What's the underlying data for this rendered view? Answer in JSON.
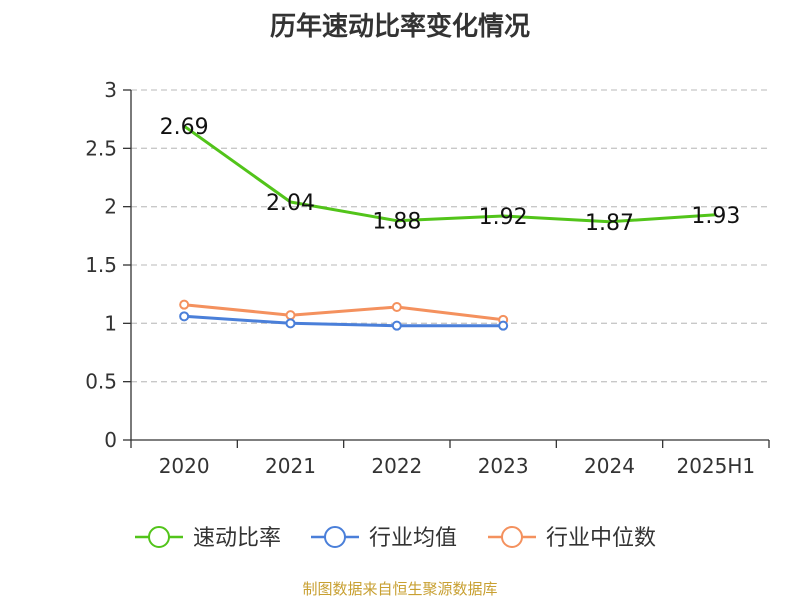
{
  "chart_data": {
    "type": "line",
    "title": "历年速动比率变化情况",
    "categories": [
      "2020",
      "2021",
      "2022",
      "2023",
      "2024",
      "2025H1"
    ],
    "ylim": [
      0,
      3
    ],
    "yticks": [
      "0",
      "0.5",
      "1",
      "1.5",
      "2",
      "2.5",
      "3"
    ],
    "grid": true,
    "legend_position": "bottom",
    "series": [
      {
        "name": "速动比率",
        "color": "#52c41a",
        "values": [
          2.69,
          2.04,
          1.88,
          1.92,
          1.87,
          1.93
        ],
        "labels": [
          "2.69",
          "2.04",
          "1.88",
          "1.92",
          "1.87",
          "1.93"
        ],
        "markers": false
      },
      {
        "name": "行业均值",
        "color": "#4a7fd9",
        "values": [
          1.06,
          1.0,
          0.98,
          0.98,
          null,
          null
        ],
        "markers": true
      },
      {
        "name": "行业中位数",
        "color": "#f4915e",
        "values": [
          1.16,
          1.07,
          1.14,
          1.03,
          null,
          null
        ],
        "markers": true
      }
    ]
  },
  "source": "制图数据来自恒生聚源数据库"
}
